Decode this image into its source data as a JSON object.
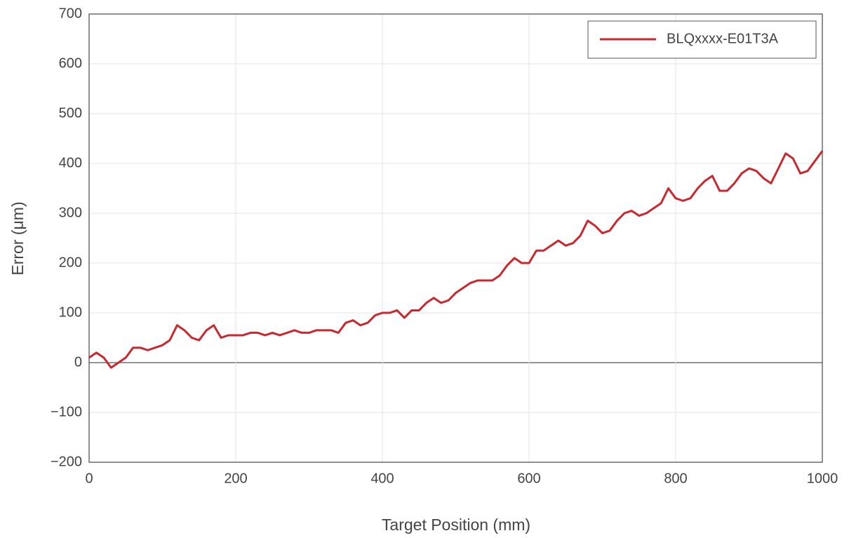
{
  "chart_data": {
    "type": "line",
    "xlabel": "Target Position (mm)",
    "ylabel": "Error (μm)",
    "x": [
      0,
      10,
      20,
      30,
      40,
      50,
      60,
      70,
      80,
      90,
      100,
      110,
      120,
      130,
      140,
      150,
      160,
      170,
      180,
      190,
      200,
      210,
      220,
      230,
      240,
      250,
      260,
      270,
      280,
      290,
      300,
      310,
      320,
      330,
      340,
      350,
      360,
      370,
      380,
      390,
      400,
      410,
      420,
      430,
      440,
      450,
      460,
      470,
      480,
      490,
      500,
      510,
      520,
      530,
      540,
      550,
      560,
      570,
      580,
      590,
      600,
      610,
      620,
      630,
      640,
      650,
      660,
      670,
      680,
      690,
      700,
      710,
      720,
      730,
      740,
      750,
      760,
      770,
      780,
      790,
      800,
      810,
      820,
      830,
      840,
      850,
      860,
      870,
      880,
      890,
      900,
      910,
      920,
      930,
      940,
      950,
      960,
      970,
      980,
      990,
      1000
    ],
    "series": [
      {
        "name": "BLQxxxx-E01T3A",
        "color": "#c8282e",
        "values": [
          10,
          20,
          10,
          -10,
          0,
          10,
          30,
          30,
          25,
          30,
          35,
          45,
          75,
          65,
          50,
          45,
          65,
          75,
          50,
          55,
          55,
          55,
          60,
          60,
          55,
          60,
          55,
          60,
          65,
          60,
          60,
          65,
          65,
          65,
          60,
          80,
          85,
          75,
          80,
          95,
          100,
          100,
          105,
          90,
          105,
          105,
          120,
          130,
          120,
          125,
          140,
          150,
          160,
          165,
          165,
          165,
          175,
          195,
          210,
          200,
          200,
          225,
          225,
          235,
          245,
          235,
          240,
          255,
          285,
          275,
          260,
          265,
          285,
          300,
          305,
          295,
          300,
          310,
          320,
          350,
          330,
          325,
          330,
          350,
          365,
          375,
          345,
          345,
          360,
          380,
          390,
          385,
          370,
          360,
          390,
          420,
          410,
          380,
          385,
          405,
          425
        ]
      }
    ],
    "xlim": [
      0,
      1000
    ],
    "xticks": [
      0,
      200,
      400,
      600,
      800,
      1000
    ],
    "ylim": [
      -200,
      700
    ],
    "yticks": [
      {
        "value": -200,
        "label": "−200"
      },
      {
        "value": -100,
        "label": "−100"
      },
      0,
      100,
      200,
      300,
      400,
      500,
      600,
      700
    ],
    "grid": true,
    "legend": "upper right"
  }
}
